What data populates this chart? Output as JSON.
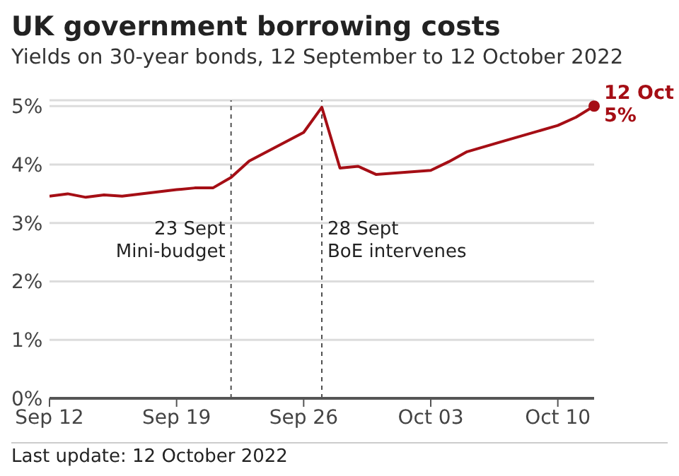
{
  "chart_data": {
    "type": "line",
    "title": "UK government borrowing costs",
    "subtitle": "Yields on 30-year bonds, 12 September to 12 October 2022",
    "x": [
      "2022-09-12",
      "2022-09-13",
      "2022-09-14",
      "2022-09-15",
      "2022-09-16",
      "2022-09-19",
      "2022-09-20",
      "2022-09-21",
      "2022-09-22",
      "2022-09-23",
      "2022-09-26",
      "2022-09-27",
      "2022-09-28",
      "2022-09-29",
      "2022-09-30",
      "2022-10-03",
      "2022-10-04",
      "2022-10-05",
      "2022-10-06",
      "2022-10-07",
      "2022-10-10",
      "2022-10-11",
      "2022-10-12"
    ],
    "series": [
      {
        "color": "#a50e15",
        "values": [
          3.46,
          3.5,
          3.44,
          3.48,
          3.46,
          3.57,
          3.6,
          3.6,
          3.78,
          4.06,
          4.55,
          4.98,
          3.94,
          3.97,
          3.83,
          3.9,
          4.05,
          4.22,
          4.31,
          4.4,
          4.67,
          4.81,
          5
        ]
      }
    ],
    "xlim": [
      "2022-09-12",
      "2022-10-12"
    ],
    "xticks": [
      {
        "value": "2022-09-12",
        "label": "Sep 12"
      },
      {
        "value": "2022-09-19",
        "label": "Sep 19"
      },
      {
        "value": "2022-09-26",
        "label": "Sep 26"
      },
      {
        "value": "2022-10-03",
        "label": "Oct 03"
      },
      {
        "value": "2022-10-10",
        "label": "Oct 10"
      }
    ],
    "ylim": [
      0,
      5.1
    ],
    "yticks": [
      {
        "value": 0,
        "label": "0%"
      },
      {
        "value": 1,
        "label": "1%"
      },
      {
        "value": 2,
        "label": "2%"
      },
      {
        "value": 3,
        "label": "3%"
      },
      {
        "value": 4,
        "label": "4%"
      },
      {
        "value": 5,
        "label": "5%"
      }
    ],
    "grid": "y",
    "marker": "none",
    "line_style": "solid",
    "ref_lines": [
      {
        "axis": "x",
        "value": "2022-09-22",
        "label": "23 Sept\nMini-budget",
        "line_style": "dashed",
        "color": "#505050"
      },
      {
        "axis": "x",
        "value": "2022-09-27",
        "label": "28 Sept\nBoE intervenes",
        "line_style": "dashed",
        "color": "#505050"
      }
    ],
    "annotations": [
      {
        "text": "12 Oct\n5%",
        "x": "2022-10-12",
        "y": 5
      },
      "Last update: 12 October 2022"
    ]
  }
}
